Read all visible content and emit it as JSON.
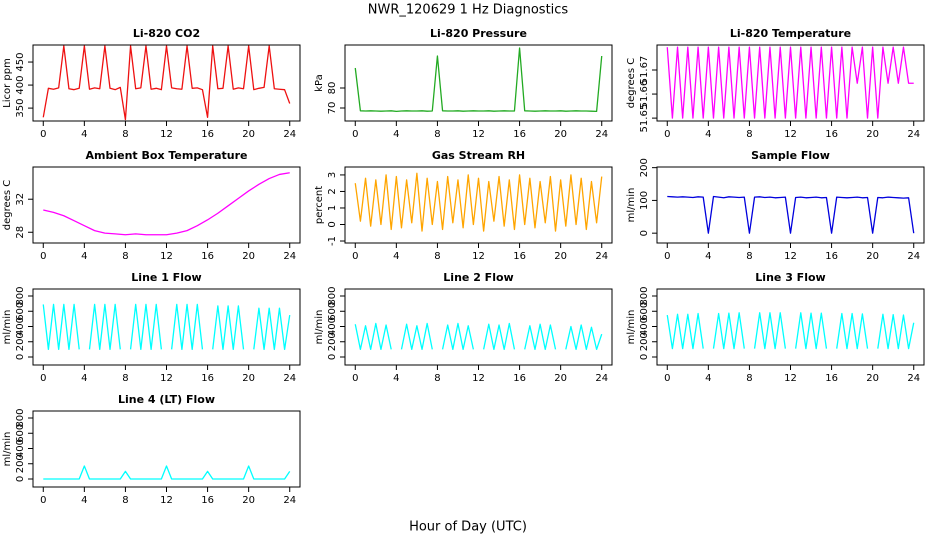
{
  "title": "NWR_120629  1 Hz Diagnostics",
  "xlabel": "Hour of Day (UTC)",
  "chart_data": [
    {
      "type": "line",
      "title": "Li-820 CO2",
      "ylabel": "Licor ppm",
      "color": "#ee1111",
      "xlim": [
        -1,
        25
      ],
      "xticks": [
        0,
        4,
        8,
        12,
        16,
        20,
        24
      ],
      "ylim": [
        322,
        487
      ],
      "yticks": [
        350,
        400,
        450
      ],
      "x": [
        0,
        0.5,
        1,
        1.5,
        2,
        2.5,
        3,
        3.5,
        4,
        4.5,
        5,
        5.5,
        6,
        6.5,
        7,
        7.5,
        8,
        8.5,
        9,
        9.5,
        10,
        10.5,
        11,
        11.5,
        12,
        12.5,
        13,
        13.5,
        14,
        14.5,
        15,
        15.5,
        16,
        16.5,
        17,
        17.5,
        18,
        18.5,
        19,
        19.5,
        20,
        20.5,
        21,
        21.5,
        22,
        22.5,
        23,
        23.5,
        24
      ],
      "values": [
        330,
        393,
        391,
        394,
        485,
        392,
        390,
        393,
        485,
        391,
        394,
        392,
        485,
        393,
        390,
        395,
        325,
        485,
        392,
        394,
        485,
        391,
        393,
        390,
        485,
        394,
        392,
        391,
        485,
        393,
        394,
        390,
        330,
        485,
        392,
        393,
        485,
        391,
        394,
        392,
        485,
        390,
        393,
        395,
        485,
        392,
        391,
        390,
        360
      ]
    },
    {
      "type": "line",
      "title": "Li-820 Pressure",
      "ylabel": "kPa",
      "color": "#22aa22",
      "xlim": [
        -1,
        25
      ],
      "xticks": [
        0,
        4,
        8,
        12,
        16,
        20,
        24
      ],
      "ylim": [
        63.5,
        101.5
      ],
      "yticks": [
        70,
        80
      ],
      "x": [
        0,
        0.5,
        1,
        1.5,
        2,
        2.5,
        3,
        3.5,
        4,
        4.5,
        5,
        5.5,
        6,
        6.5,
        7,
        7.5,
        8,
        8.5,
        9,
        9.5,
        10,
        10.5,
        11,
        11.5,
        12,
        12.5,
        13,
        13.5,
        14,
        14.5,
        15,
        15.5,
        16,
        16.5,
        17,
        17.5,
        18,
        18.5,
        19,
        19.5,
        20,
        20.5,
        21,
        21.5,
        22,
        22.5,
        23,
        23.5,
        24
      ],
      "values": [
        90,
        68.6,
        68.5,
        68.6,
        68.5,
        68.4,
        68.5,
        68.6,
        68.3,
        68.5,
        68.6,
        68.5,
        68.5,
        68.6,
        68.4,
        68.5,
        96,
        68.6,
        68.5,
        68.5,
        68.6,
        68.4,
        68.5,
        68.6,
        68.5,
        68.5,
        68.6,
        68.4,
        68.5,
        68.6,
        68.5,
        68.5,
        100,
        68.6,
        68.5,
        68.4,
        68.5,
        68.6,
        68.5,
        68.5,
        68.6,
        68.4,
        68.5,
        68.6,
        68.5,
        68.5,
        68.4,
        68.3,
        96
      ]
    },
    {
      "type": "line",
      "title": "Li-820 Temperature",
      "ylabel": "degrees C",
      "color": "#ff00ff",
      "xlim": [
        -1,
        25
      ],
      "xticks": [
        0,
        4,
        8,
        12,
        16,
        20,
        24
      ],
      "ylim": [
        51.6488,
        51.6804
      ],
      "yticks": [
        51.65,
        51.66,
        51.67
      ],
      "x": [
        0,
        0.5,
        1,
        1.5,
        2,
        2.5,
        3,
        3.5,
        4,
        4.5,
        5,
        5.5,
        6,
        6.5,
        7,
        7.5,
        8,
        8.5,
        9,
        9.5,
        10,
        10.5,
        11,
        11.5,
        12,
        12.5,
        13,
        13.5,
        14,
        14.5,
        15,
        15.5,
        16,
        16.5,
        17,
        17.5,
        18,
        18.5,
        19,
        19.5,
        20,
        20.5,
        21,
        21.5,
        22,
        22.5,
        23,
        23.5,
        24
      ],
      "values": [
        51.6795,
        51.65,
        51.6795,
        51.65,
        51.6795,
        51.65,
        51.6795,
        51.65,
        51.6795,
        51.65,
        51.6795,
        51.65,
        51.6795,
        51.65,
        51.6795,
        51.65,
        51.6795,
        51.65,
        51.6795,
        51.65,
        51.6795,
        51.65,
        51.6795,
        51.65,
        51.6795,
        51.65,
        51.6795,
        51.65,
        51.6795,
        51.65,
        51.6795,
        51.65,
        51.6795,
        51.65,
        51.6795,
        51.65,
        51.6795,
        51.6645,
        51.6795,
        51.65,
        51.6795,
        51.65,
        51.6795,
        51.6645,
        51.6795,
        51.6645,
        51.6795,
        51.6645,
        51.6645
      ]
    },
    {
      "type": "line",
      "title": "Ambient Box Temperature",
      "ylabel": "degrees C",
      "color": "#ff00ff",
      "xlim": [
        -1,
        25
      ],
      "xticks": [
        0,
        4,
        8,
        12,
        16,
        20,
        24
      ],
      "ylim": [
        26.7,
        35.9
      ],
      "yticks": [
        28,
        32
      ],
      "x": [
        0,
        1,
        2,
        3,
        4,
        5,
        6,
        7,
        8,
        9,
        10,
        11,
        12,
        13,
        14,
        15,
        16,
        17,
        18,
        19,
        20,
        21,
        22,
        23,
        24
      ],
      "values": [
        30.7,
        30.4,
        30,
        29.4,
        28.8,
        28.2,
        27.9,
        27.8,
        27.7,
        27.8,
        27.7,
        27.7,
        27.7,
        27.9,
        28.2,
        28.8,
        29.5,
        30.3,
        31.2,
        32.1,
        33,
        33.8,
        34.5,
        35,
        35.2
      ]
    },
    {
      "type": "line",
      "title": "Gas Stream RH",
      "ylabel": "percent",
      "color": "#ffa500",
      "xlim": [
        -1,
        25
      ],
      "xticks": [
        0,
        4,
        8,
        12,
        16,
        20,
        24
      ],
      "ylim": [
        -1.12,
        3.48
      ],
      "yticks": [
        -1,
        0,
        1,
        2,
        3
      ],
      "x": [
        0,
        0.5,
        1,
        1.5,
        2,
        2.5,
        3,
        3.5,
        4,
        4.5,
        5,
        5.5,
        6,
        6.5,
        7,
        7.5,
        8,
        8.5,
        9,
        9.5,
        10,
        10.5,
        11,
        11.5,
        12,
        12.5,
        13,
        13.5,
        14,
        14.5,
        15,
        15.5,
        16,
        16.5,
        17,
        17.5,
        18,
        18.5,
        19,
        19.5,
        20,
        20.5,
        21,
        21.5,
        22,
        22.5,
        23,
        23.5,
        24
      ],
      "values": [
        2.5,
        0.2,
        2.8,
        -0.1,
        2.7,
        0.0,
        3.0,
        -0.3,
        2.9,
        -0.2,
        2.7,
        0.1,
        3.1,
        -0.4,
        2.8,
        0.0,
        2.6,
        -0.3,
        2.9,
        0.1,
        2.7,
        -0.2,
        3.0,
        0.0,
        2.8,
        -0.4,
        2.6,
        0.2,
        2.9,
        -0.1,
        2.7,
        -0.3,
        3.0,
        0.0,
        2.8,
        -0.2,
        2.6,
        0.1,
        2.9,
        -0.4,
        2.7,
        -0.1,
        3.0,
        0.0,
        2.8,
        -0.3,
        2.6,
        0.1,
        2.9
      ]
    },
    {
      "type": "line",
      "title": "Sample Flow",
      "ylabel": "ml/min",
      "color": "#0000dd",
      "xlim": [
        -1,
        25
      ],
      "xticks": [
        0,
        4,
        8,
        12,
        16,
        20,
        24
      ],
      "ylim": [
        -30,
        202
      ],
      "yticks": [
        0,
        100,
        200
      ],
      "x": [
        0,
        0.5,
        1,
        1.5,
        2,
        2.5,
        3,
        3.5,
        4,
        4.5,
        5,
        5.5,
        6,
        6.5,
        7,
        7.5,
        8,
        8.5,
        9,
        9.5,
        10,
        10.5,
        11,
        11.5,
        12,
        12.5,
        13,
        13.5,
        14,
        14.5,
        15,
        15.5,
        16,
        16.5,
        17,
        17.5,
        18,
        18.5,
        19,
        19.5,
        20,
        20.5,
        21,
        21.5,
        22,
        22.5,
        23,
        23.5,
        24
      ],
      "values": [
        112,
        111,
        110,
        111,
        110,
        109,
        111,
        110,
        0,
        112,
        110,
        108,
        111,
        110,
        109,
        110,
        0,
        110,
        111,
        109,
        110,
        108,
        109,
        110,
        0,
        109,
        110,
        108,
        109,
        110,
        108,
        109,
        0,
        110,
        109,
        108,
        109,
        110,
        108,
        109,
        0,
        109,
        108,
        110,
        109,
        108,
        107,
        108,
        0
      ]
    },
    {
      "type": "line",
      "title": "Line 1 Flow",
      "ylabel": "ml/min",
      "color": "#00ffff",
      "xlim": [
        -1,
        25
      ],
      "xticks": [
        0,
        4,
        8,
        12,
        16,
        20,
        24
      ],
      "ylim": [
        -105,
        892
      ],
      "yticks": [
        0,
        200,
        400,
        600,
        800
      ],
      "x": [
        0,
        0.5,
        1,
        1.5,
        2,
        2.5,
        3,
        3.5,
        4,
        4.5,
        5,
        5.5,
        6,
        6.5,
        7,
        7.5,
        8,
        8.5,
        9,
        9.5,
        10,
        10.5,
        11,
        11.5,
        12,
        12.5,
        13,
        13.5,
        14,
        14.5,
        15,
        15.5,
        16,
        16.5,
        17,
        17.5,
        18,
        18.5,
        19,
        19.5,
        20,
        20.5,
        21,
        21.5,
        22,
        22.5,
        23,
        23.5,
        24
      ],
      "values": [
        690,
        100,
        690,
        100,
        690,
        100,
        690,
        100,
        null,
        100,
        690,
        100,
        690,
        100,
        690,
        100,
        null,
        100,
        690,
        100,
        690,
        100,
        690,
        100,
        null,
        100,
        690,
        100,
        690,
        100,
        690,
        100,
        null,
        100,
        670,
        100,
        670,
        100,
        670,
        100,
        null,
        100,
        640,
        100,
        640,
        100,
        640,
        100,
        550
      ]
    },
    {
      "type": "line",
      "title": "Line 2 Flow",
      "ylabel": "ml/min",
      "color": "#00ffff",
      "xlim": [
        -1,
        25
      ],
      "xticks": [
        0,
        4,
        8,
        12,
        16,
        20,
        24
      ],
      "ylim": [
        -105,
        892
      ],
      "yticks": [
        0,
        200,
        400,
        600,
        800
      ],
      "x": [
        0,
        0.5,
        1,
        1.5,
        2,
        2.5,
        3,
        3.5,
        4,
        4.5,
        5,
        5.5,
        6,
        6.5,
        7,
        7.5,
        8,
        8.5,
        9,
        9.5,
        10,
        10.5,
        11,
        11.5,
        12,
        12.5,
        13,
        13.5,
        14,
        14.5,
        15,
        15.5,
        16,
        16.5,
        17,
        17.5,
        18,
        18.5,
        19,
        19.5,
        20,
        20.5,
        21,
        21.5,
        22,
        22.5,
        23,
        23.5,
        24
      ],
      "values": [
        430,
        100,
        410,
        100,
        440,
        100,
        420,
        100,
        null,
        100,
        430,
        100,
        410,
        100,
        440,
        100,
        null,
        100,
        420,
        100,
        440,
        100,
        410,
        100,
        null,
        100,
        430,
        100,
        420,
        100,
        440,
        100,
        null,
        100,
        410,
        100,
        430,
        100,
        420,
        100,
        null,
        100,
        400,
        100,
        420,
        100,
        390,
        100,
        300
      ]
    },
    {
      "type": "line",
      "title": "Line 3 Flow",
      "ylabel": "ml/min",
      "color": "#00ffff",
      "xlim": [
        -1,
        25
      ],
      "xticks": [
        0,
        4,
        8,
        12,
        16,
        20,
        24
      ],
      "ylim": [
        -105,
        892
      ],
      "yticks": [
        0,
        200,
        400,
        600,
        800
      ],
      "x": [
        0,
        0.5,
        1,
        1.5,
        2,
        2.5,
        3,
        3.5,
        4,
        4.5,
        5,
        5.5,
        6,
        6.5,
        7,
        7.5,
        8,
        8.5,
        9,
        9.5,
        10,
        10.5,
        11,
        11.5,
        12,
        12.5,
        13,
        13.5,
        14,
        14.5,
        15,
        15.5,
        16,
        16.5,
        17,
        17.5,
        18,
        18.5,
        19,
        19.5,
        20,
        20.5,
        21,
        21.5,
        22,
        22.5,
        23,
        23.5,
        24
      ],
      "values": [
        550,
        110,
        560,
        110,
        560,
        110,
        570,
        110,
        null,
        110,
        570,
        110,
        575,
        110,
        580,
        110,
        null,
        110,
        580,
        110,
        580,
        110,
        580,
        110,
        null,
        110,
        580,
        110,
        575,
        110,
        575,
        110,
        null,
        110,
        570,
        110,
        570,
        110,
        565,
        110,
        null,
        110,
        560,
        110,
        555,
        110,
        550,
        110,
        450
      ]
    },
    {
      "type": "line",
      "title": "Line 4 (LT) Flow",
      "ylabel": "ml/min",
      "color": "#00ffff",
      "xlim": [
        -1,
        25
      ],
      "xticks": [
        0,
        4,
        8,
        12,
        16,
        20,
        24
      ],
      "ylim": [
        -105,
        892
      ],
      "yticks": [
        0,
        200,
        400,
        600,
        800
      ],
      "x": [
        0,
        0.5,
        1,
        1.5,
        2,
        2.5,
        3,
        3.5,
        4,
        4.5,
        5,
        5.5,
        6,
        6.5,
        7,
        7.5,
        8,
        8.5,
        9,
        9.5,
        10,
        10.5,
        11,
        11.5,
        12,
        12.5,
        13,
        13.5,
        14,
        14.5,
        15,
        15.5,
        16,
        16.5,
        17,
        17.5,
        18,
        18.5,
        19,
        19.5,
        20,
        20.5,
        21,
        21.5,
        22,
        22.5,
        23,
        23.5,
        24
      ],
      "values": [
        0,
        0,
        0,
        0,
        0,
        0,
        0,
        0,
        170,
        0,
        0,
        0,
        0,
        0,
        0,
        0,
        100,
        0,
        0,
        0,
        0,
        0,
        0,
        0,
        170,
        0,
        0,
        0,
        0,
        0,
        0,
        0,
        100,
        0,
        0,
        0,
        0,
        0,
        0,
        0,
        170,
        0,
        0,
        0,
        0,
        0,
        0,
        0,
        100
      ]
    }
  ]
}
